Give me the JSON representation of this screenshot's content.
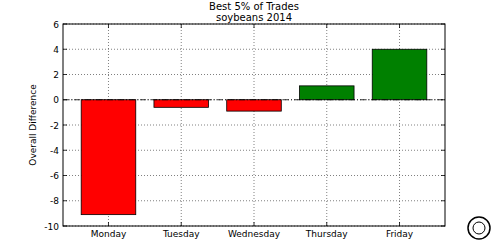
{
  "chart_data": {
    "type": "bar",
    "title": "Best 5% of Trades",
    "subtitle": "soybeans 2014",
    "y_label": "Overall Difference",
    "categories": [
      "Monday",
      "Tuesday",
      "Wednesday",
      "Thursday",
      "Friday"
    ],
    "values": [
      -9.1,
      -0.6,
      -0.9,
      1.1,
      4.0
    ],
    "colors": [
      "#ff0000",
      "#ff0000",
      "#ff0000",
      "#008000",
      "#008000"
    ],
    "ylim": [
      -10,
      6
    ],
    "yticks": [
      -10,
      -8,
      -6,
      -4,
      -2,
      0,
      2,
      4,
      6
    ],
    "grid": true
  }
}
